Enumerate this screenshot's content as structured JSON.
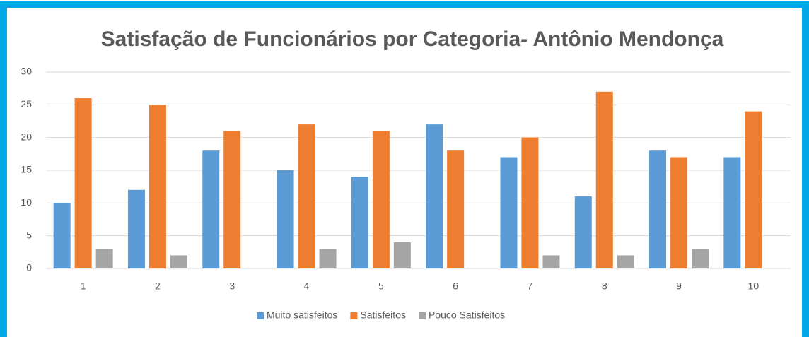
{
  "chart_data": {
    "type": "bar",
    "title": "Satisfação de Funcionários por Categoria- Antônio Mendonça",
    "categories": [
      "1",
      "2",
      "3",
      "4",
      "5",
      "6",
      "7",
      "8",
      "9",
      "10"
    ],
    "series": [
      {
        "name": "Muito satisfeitos",
        "color": "#5b9bd5",
        "values": [
          10,
          12,
          18,
          15,
          14,
          22,
          17,
          11,
          18,
          17
        ]
      },
      {
        "name": "Satisfeitos",
        "color": "#ed7d31",
        "values": [
          26,
          25,
          21,
          22,
          21,
          18,
          20,
          27,
          17,
          24
        ]
      },
      {
        "name": "Pouco Satisfeitos",
        "color": "#a5a5a5",
        "values": [
          3,
          2,
          0,
          3,
          4,
          0,
          2,
          2,
          3,
          0
        ]
      }
    ],
    "ylim": [
      0,
      30
    ],
    "yticks": [
      0,
      5,
      10,
      15,
      20,
      25,
      30
    ],
    "grid": true,
    "legend": "bottom"
  }
}
